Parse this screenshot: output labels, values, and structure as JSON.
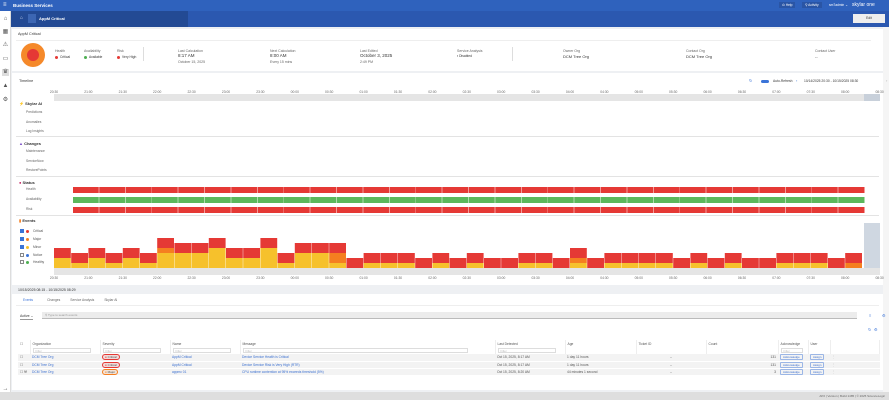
{
  "topbar": {
    "title": "Business Services",
    "help": "Help",
    "activity": "Activity",
    "user": "sm7admin",
    "brand": "skylar one"
  },
  "subheader": {
    "title": "AppM Critical",
    "edit_label": "Edit"
  },
  "summary": {
    "title": "AppM Critical",
    "health": {
      "label": "Health",
      "value": "Critical",
      "color": "#e53935"
    },
    "availability": {
      "label": "Availability",
      "value": "Available",
      "color": "#4caf50"
    },
    "risk": {
      "label": "Risk",
      "value": "Very High",
      "color": "#e53935"
    },
    "last_calc": {
      "label": "Last Calculation",
      "value": "8:17 AM",
      "sub": "October 15, 2025"
    },
    "next_calc": {
      "label": "Next Calculation",
      "value": "8:00 AM",
      "sub": "Every 15 mins"
    },
    "last_edited": {
      "label": "Last Edited",
      "value": "October 3, 2025",
      "sub": "2:49 PM"
    },
    "service_analysis": {
      "label": "Service Analysis",
      "value": "Disabled"
    },
    "owner_org": {
      "label": "Owner Org",
      "value": "DCM Tree Org"
    },
    "contact_org": {
      "label": "Contact Org",
      "value": "DCM Tree Org"
    },
    "contact_user": {
      "label": "Contact User",
      "value": "--"
    }
  },
  "timeline": {
    "title": "Timeline",
    "auto_refresh": "Auto-Refresh",
    "range": "10/14/2025 20:30 - 10/15/2025 08:30",
    "ticks": [
      "20:30",
      "21:00",
      "21:30",
      "22:00",
      "22:30",
      "23:00",
      "23:30",
      "00:00",
      "00:30",
      "01:00",
      "01:30",
      "02:00",
      "02:30",
      "03:00",
      "03:30",
      "04:00",
      "04:30",
      "05:00",
      "05:30",
      "06:00",
      "06:30",
      "07:00",
      "07:30",
      "08:00",
      "08:30"
    ],
    "skylar": {
      "title": "Skylar AI",
      "rows": [
        "Predictions",
        "Anomalies",
        "Log Insights"
      ]
    },
    "changes": {
      "title": "Changes",
      "rows": [
        "Maintenance",
        "ServiceNow",
        "RestorePoints"
      ]
    },
    "status": {
      "title": "Status",
      "rows": [
        "Health",
        "Availability",
        "Risk"
      ],
      "colors": [
        "#e53935",
        "#5cb85c",
        "#e53935"
      ]
    },
    "events": {
      "title": "Events",
      "legend": [
        {
          "label": "Critical",
          "color": "#e53935",
          "checked": true
        },
        {
          "label": "Major",
          "color": "#f57f20",
          "checked": true
        },
        {
          "label": "Minor",
          "color": "#f6c12c",
          "checked": true
        },
        {
          "label": "Notice",
          "color": "#3b74d8",
          "checked": false
        },
        {
          "label": "Healthy",
          "color": "#4caf50",
          "checked": false
        }
      ]
    }
  },
  "chart_data": {
    "type": "bar",
    "stacked": true,
    "x_interval": "15 min",
    "x_range": [
      "20:30",
      "08:30"
    ],
    "series": [
      {
        "name": "Critical",
        "color": "#e53935",
        "values": [
          2,
          2,
          2,
          2,
          2,
          2,
          2,
          2,
          2,
          2,
          2,
          2,
          2,
          2,
          2,
          2,
          2,
          2,
          2,
          2,
          2,
          2,
          2,
          2,
          2,
          2,
          2,
          2,
          2,
          2,
          2,
          2,
          2,
          2,
          2,
          2,
          2,
          2,
          2,
          2,
          2,
          2,
          2,
          2,
          2,
          2,
          2
        ]
      },
      {
        "name": "Major",
        "color": "#f57f20",
        "values": [
          0,
          0,
          0,
          0,
          0,
          0,
          1,
          0,
          0,
          0,
          0,
          0,
          0,
          0,
          0,
          0,
          2,
          0,
          0,
          0,
          0,
          0,
          0,
          0,
          0,
          0,
          0,
          0,
          0,
          0,
          1,
          0,
          0,
          0,
          0,
          0,
          0,
          0,
          0,
          0,
          0,
          0,
          0,
          0,
          0,
          0,
          1
        ]
      },
      {
        "name": "Minor",
        "color": "#f6c12c",
        "values": [
          2,
          1,
          2,
          1,
          2,
          1,
          3,
          3,
          3,
          4,
          2,
          2,
          4,
          1,
          3,
          3,
          1,
          0,
          1,
          1,
          1,
          0,
          1,
          0,
          1,
          0,
          0,
          1,
          1,
          0,
          1,
          0,
          1,
          1,
          1,
          1,
          0,
          1,
          0,
          1,
          0,
          0,
          1,
          1,
          1,
          0,
          0
        ]
      }
    ]
  },
  "details": {
    "range": "10/15/2025 08:15 - 10/15/2025 08:29",
    "tabs": [
      "Events",
      "Changes",
      "Service Analysis",
      "Skylar AI"
    ],
    "filter": "Active",
    "search_placeholder": "Type to search events",
    "filter_placeholder": "Filter",
    "columns": [
      "Organization",
      "Severity",
      "Name",
      "Message",
      "Last Detected",
      "Age",
      "Ticket ID",
      "Count",
      "Acknowledge",
      "User"
    ],
    "rows": [
      {
        "org": "DCM Tree Org",
        "severity": "Critical",
        "sev_color": "#e53935",
        "name": "AppM Critical",
        "message": "Device Service Health is Critical",
        "last": "Oct 15, 2025, 8:17 AM",
        "age": "1 day 11 hours",
        "ticket": "--",
        "count": "131",
        "ack": "Acknowledge",
        "user": "Assign"
      },
      {
        "org": "DCM Tree Org",
        "severity": "Critical",
        "sev_color": "#e53935",
        "name": "AppM Critical",
        "message": "Device Service Risk is Very High (RTR)",
        "last": "Oct 15, 2025, 8:17 AM",
        "age": "1 day 11 hours",
        "ticket": "--",
        "count": "131",
        "ack": "Acknowledge",
        "user": "Assign"
      },
      {
        "org": "DCM Tree Org",
        "severity": "Major",
        "sev_color": "#f57f20",
        "name": "appmc 01",
        "message": "CPU runtime contention at 95% exceeds threshold (5%)",
        "last": "Oct 15, 2025, 8:20 AM",
        "age": "44 minutes 1 second",
        "ticket": "--",
        "count": "3",
        "ack": "Acknowledge",
        "user": "Assign"
      }
    ]
  },
  "footer": {
    "text": "AP2 | Version | Build 1485 | © 2025 ScienceLogic"
  }
}
